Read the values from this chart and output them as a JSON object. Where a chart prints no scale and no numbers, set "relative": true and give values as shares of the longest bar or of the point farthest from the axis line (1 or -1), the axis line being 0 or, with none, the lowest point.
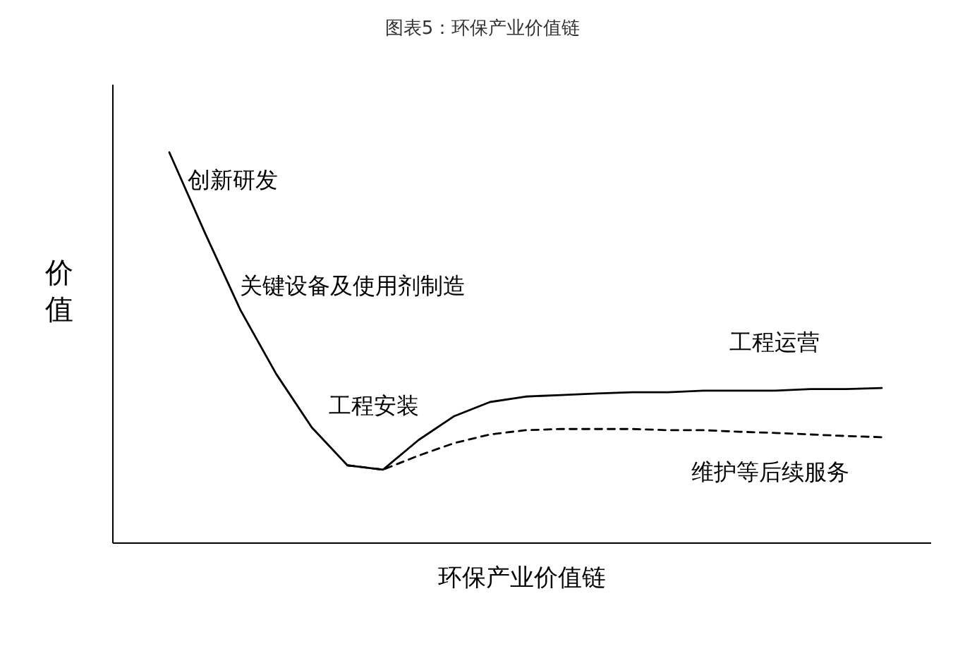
{
  "chart_data": {
    "type": "line",
    "title": "图表5：环保产业价值链",
    "xlabel": "环保产业价值链",
    "ylabel": "价值",
    "relative": true,
    "categories": [
      null,
      null,
      null,
      null,
      null,
      null,
      null,
      null,
      null,
      null,
      null,
      null,
      null,
      null,
      null,
      null,
      null,
      null,
      null,
      null,
      null
    ],
    "series": [
      {
        "color": "#000000",
        "line_style": "solid",
        "values": [
          1.0,
          0.794,
          0.596,
          0.433,
          0.296,
          0.199,
          0.188,
          0.264,
          0.325,
          0.361,
          0.375,
          0.379,
          0.383,
          0.386,
          0.386,
          0.39,
          0.39,
          0.39,
          0.394,
          0.394,
          0.397
        ]
      },
      {
        "color": "#000000",
        "line_style": "dashed",
        "values": [
          null,
          null,
          null,
          null,
          null,
          0.199,
          0.188,
          0.224,
          0.256,
          0.278,
          0.289,
          0.292,
          0.292,
          0.292,
          0.289,
          0.289,
          0.285,
          0.282,
          0.278,
          0.274,
          0.271
        ]
      }
    ],
    "annotations": [
      "创新研发",
      "关键设备及使用剂制造",
      "工程安装",
      "工程运营",
      "维护等后续服务"
    ]
  }
}
